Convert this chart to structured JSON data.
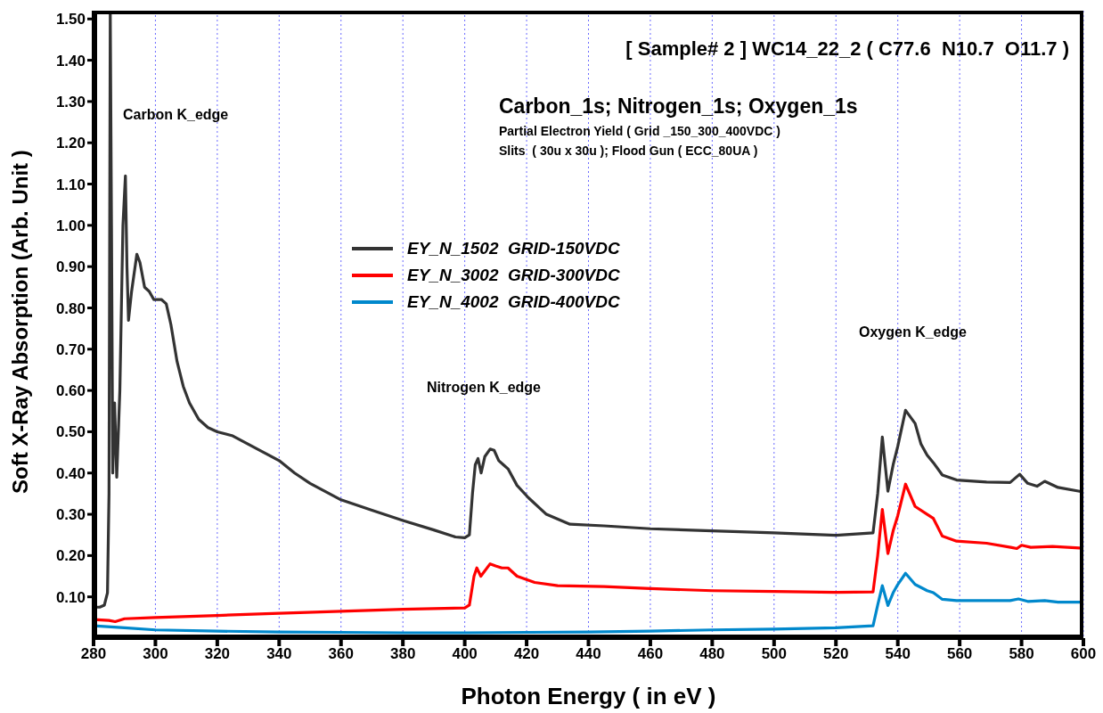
{
  "chart_data": {
    "type": "line",
    "title": "[ Sample# 2 ] WC14_22_2 ( C77.6  N10.7  O11.7 )",
    "subtitle": "Carbon_1s; Nitrogen_1s; Oxygen_1s",
    "xlabel": "Photon Energy ( in eV )",
    "ylabel": "Soft X-Ray Absorption  (Arb. Unit )",
    "annotations": [
      "Partial Electron Yield ( Grid _150_300_400VDC )",
      "Slits  ( 30u x 30u ); Flood Gun ( ECC_80UA )",
      "Carbon K_edge",
      "Nitrogen K_edge",
      "Oxygen K_edge"
    ],
    "xlim": [
      280,
      600
    ],
    "xticks": [
      280,
      300,
      320,
      340,
      360,
      380,
      400,
      420,
      440,
      460,
      480,
      500,
      520,
      540,
      560,
      580,
      600
    ],
    "ylim": [
      0,
      1.52
    ],
    "yticks": [
      {
        "value": 0.1,
        "label": "0.10"
      },
      {
        "value": 0.2,
        "label": "0.20"
      },
      {
        "value": 0.3,
        "label": "0.30"
      },
      {
        "value": 0.4,
        "label": "0.40"
      },
      {
        "value": 0.5,
        "label": "0.50"
      },
      {
        "value": 0.6,
        "label": "0.60"
      },
      {
        "value": 0.7,
        "label": "0.70"
      },
      {
        "value": 0.8,
        "label": "0.80"
      },
      {
        "value": 0.9,
        "label": "0.90"
      },
      {
        "value": 1.0,
        "label": "1.00"
      },
      {
        "value": 1.1,
        "label": "1.10"
      },
      {
        "value": 1.2,
        "label": "1.20"
      },
      {
        "value": 1.3,
        "label": "1.30"
      },
      {
        "value": 1.4,
        "label": "1.40"
      },
      {
        "value": 1.5,
        "label": "1.50"
      }
    ],
    "grid": "x",
    "legend": "left",
    "marker": "none",
    "line_style": "solid",
    "series": [
      {
        "name": "EY_N_1502  GRID-150VDC",
        "color": "#333333",
        "x": [
          280,
          282,
          283.5,
          284.5,
          285,
          285.4,
          285.8,
          286.2,
          286.8,
          287.5,
          288.5,
          289.5,
          290.3,
          290.8,
          291.3,
          292.3,
          294,
          295,
          296.5,
          298,
          299.5,
          302,
          303.5,
          305,
          307,
          309,
          311,
          314,
          317,
          320,
          325,
          330,
          335,
          340,
          345,
          350,
          355,
          360,
          370,
          380,
          390,
          397,
          400,
          401.5,
          402.5,
          403.4,
          404.3,
          405.3,
          406.5,
          408.2,
          409.5,
          411,
          412.5,
          414,
          416.9,
          420.6,
          426.4,
          434,
          445,
          460,
          480,
          500,
          520,
          532,
          533.5,
          535,
          536.8,
          538.5,
          540,
          542.5,
          545.6,
          547.5,
          549.5,
          551.5,
          554.4,
          559,
          568.7,
          576.3,
          579.4,
          582,
          585,
          587.5,
          591.8,
          600
        ],
        "values": [
          0.075,
          0.075,
          0.08,
          0.11,
          0.35,
          1.52,
          1.0,
          0.4,
          0.57,
          0.39,
          0.6,
          1.0,
          1.12,
          0.9,
          0.77,
          0.84,
          0.93,
          0.91,
          0.85,
          0.84,
          0.82,
          0.82,
          0.81,
          0.76,
          0.67,
          0.61,
          0.57,
          0.53,
          0.51,
          0.5,
          0.49,
          0.47,
          0.45,
          0.43,
          0.4,
          0.375,
          0.355,
          0.335,
          0.31,
          0.285,
          0.262,
          0.245,
          0.243,
          0.25,
          0.35,
          0.42,
          0.435,
          0.4,
          0.44,
          0.458,
          0.455,
          0.43,
          0.42,
          0.41,
          0.37,
          0.34,
          0.3,
          0.276,
          0.272,
          0.265,
          0.26,
          0.255,
          0.249,
          0.255,
          0.35,
          0.487,
          0.356,
          0.42,
          0.465,
          0.552,
          0.52,
          0.47,
          0.443,
          0.425,
          0.395,
          0.383,
          0.378,
          0.377,
          0.397,
          0.375,
          0.368,
          0.38,
          0.365,
          0.354
        ]
      },
      {
        "name": "EY_N_3002  GRID-300VDC",
        "color": "#ff0000",
        "x": [
          280,
          285,
          287,
          290,
          300,
          320,
          340,
          360,
          380,
          400,
          401.5,
          403,
          403.9,
          405.2,
          408.2,
          410,
          412,
          414,
          416.9,
          422.6,
          430,
          445,
          460,
          480,
          500,
          520,
          532,
          533.5,
          535,
          536.8,
          538.5,
          540,
          542.5,
          545.6,
          549.5,
          551.5,
          554.4,
          559,
          568.7,
          576.5,
          578.5,
          580,
          583,
          590,
          600
        ],
        "values": [
          0.045,
          0.043,
          0.04,
          0.047,
          0.05,
          0.055,
          0.06,
          0.065,
          0.07,
          0.073,
          0.08,
          0.15,
          0.17,
          0.15,
          0.18,
          0.175,
          0.17,
          0.17,
          0.15,
          0.135,
          0.127,
          0.125,
          0.12,
          0.115,
          0.113,
          0.111,
          0.112,
          0.2,
          0.312,
          0.205,
          0.26,
          0.297,
          0.373,
          0.319,
          0.3,
          0.29,
          0.247,
          0.235,
          0.23,
          0.22,
          0.217,
          0.225,
          0.22,
          0.222,
          0.218
        ]
      },
      {
        "name": "EY_N_4002  GRID-400VDC",
        "color": "#0088cc",
        "x": [
          280,
          290,
          300,
          320,
          340,
          360,
          380,
          400,
          420,
          440,
          460,
          480,
          500,
          520,
          532,
          533.5,
          535,
          536.8,
          538.5,
          540,
          542.5,
          545.6,
          549.5,
          551.5,
          554.4,
          559,
          576.3,
          579,
          582,
          587.5,
          591.8,
          600
        ],
        "values": [
          0.03,
          0.025,
          0.02,
          0.017,
          0.015,
          0.014,
          0.013,
          0.013,
          0.014,
          0.015,
          0.017,
          0.02,
          0.022,
          0.025,
          0.03,
          0.08,
          0.127,
          0.079,
          0.11,
          0.13,
          0.157,
          0.13,
          0.115,
          0.11,
          0.094,
          0.091,
          0.091,
          0.095,
          0.089,
          0.091,
          0.087,
          0.087
        ]
      }
    ]
  }
}
